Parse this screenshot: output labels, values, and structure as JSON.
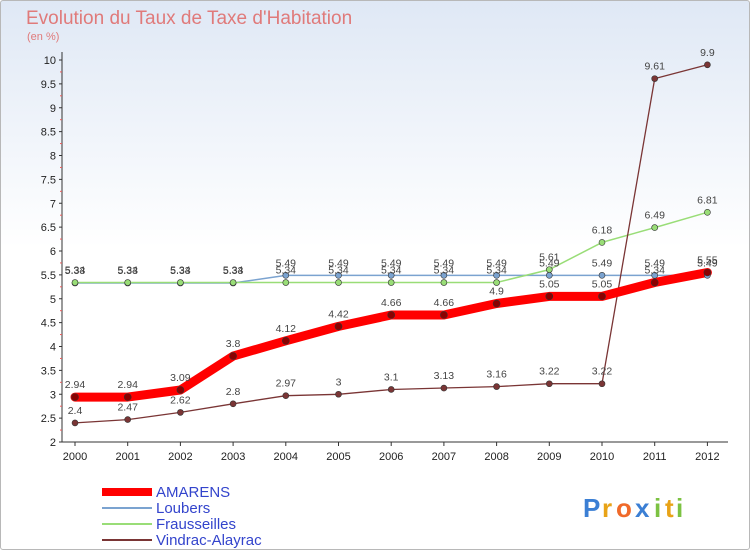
{
  "chart_data": {
    "type": "line",
    "title": "Evolution du Taux de Taxe d'Habitation",
    "subtitle": "(en %)",
    "x": [
      "2000",
      "2001",
      "2002",
      "2003",
      "2004",
      "2005",
      "2006",
      "2007",
      "2008",
      "2009",
      "2010",
      "2011",
      "2012"
    ],
    "ylim": [
      2,
      10
    ],
    "yticks": [
      "2",
      "2.5",
      "3",
      "3.5",
      "4",
      "4.5",
      "5",
      "5.5",
      "6",
      "6.5",
      "7",
      "7.5",
      "8",
      "8.5",
      "9",
      "9.5",
      "10"
    ],
    "series": [
      {
        "name": "AMARENS",
        "color": "#ff0000",
        "values": [
          2.94,
          2.94,
          3.09,
          3.8,
          4.12,
          4.42,
          4.66,
          4.66,
          4.9,
          5.05,
          5.05,
          5.34,
          5.55
        ],
        "labels": [
          "2.94",
          "2.94",
          "3.09",
          "3.8",
          "4.12",
          "4.42",
          "4.66",
          "4.66",
          "4.9",
          "5.05",
          "5.05",
          "5.34",
          "5.55"
        ]
      },
      {
        "name": "Loubers",
        "color": "#7ba3d0",
        "values": [
          5.33,
          5.33,
          5.33,
          5.33,
          5.49,
          5.49,
          5.49,
          5.49,
          5.49,
          5.49,
          5.49,
          5.49,
          5.49
        ],
        "labels": [
          "5.33",
          "5.33",
          "5.33",
          "5.33",
          "5.49",
          "5.49",
          "5.49",
          "5.49",
          "5.49",
          "5.49",
          "5.49",
          "5.49",
          "5.49"
        ]
      },
      {
        "name": "Frausseilles",
        "color": "#99dd77",
        "values": [
          5.34,
          5.34,
          5.34,
          5.34,
          5.34,
          5.34,
          5.34,
          5.34,
          5.34,
          5.61,
          6.18,
          6.49,
          6.81
        ],
        "labels": [
          "5.34",
          "5.34",
          "5.34",
          "5.34",
          "5.34",
          "5.34",
          "5.34",
          "5.34",
          "5.34",
          "5.61",
          "6.18",
          "6.49",
          "6.81"
        ]
      },
      {
        "name": "Vindrac-Alayrac",
        "color": "#7a3535",
        "values": [
          2.4,
          2.47,
          2.62,
          2.8,
          2.97,
          3.0,
          3.1,
          3.13,
          3.16,
          3.22,
          3.22,
          9.61,
          9.9
        ],
        "labels": [
          "2.4",
          "2.47",
          "2.62",
          "2.8",
          "2.97",
          "3",
          "3.1",
          "3.13",
          "3.16",
          "3.22",
          "3.22",
          "9.61",
          "9.9"
        ]
      }
    ],
    "legend": "bottom-left",
    "grid": false
  },
  "logo": {
    "letters": [
      "P",
      "r",
      "o",
      "x",
      "i",
      "t",
      "i"
    ]
  }
}
